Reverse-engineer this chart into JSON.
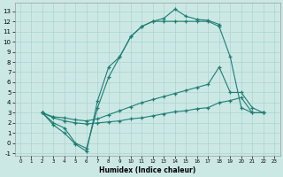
{
  "bg_color": "#cce8e5",
  "grid_color": "#aad4d0",
  "line_color": "#1e7d72",
  "xlabel": "Humidex (Indice chaleur)",
  "xlim": [
    -0.5,
    23.5
  ],
  "ylim": [
    -1.2,
    13.8
  ],
  "xticks": [
    0,
    1,
    2,
    3,
    4,
    5,
    6,
    7,
    8,
    9,
    10,
    11,
    12,
    13,
    14,
    15,
    16,
    17,
    18,
    19,
    20,
    21,
    22,
    23
  ],
  "yticks": [
    -1,
    0,
    1,
    2,
    3,
    4,
    5,
    6,
    7,
    8,
    9,
    10,
    11,
    12,
    13
  ],
  "curve1_x": [
    2,
    3,
    4,
    5,
    6,
    7,
    8,
    9,
    10,
    11,
    12,
    13,
    14,
    15,
    16,
    17,
    18,
    19,
    20,
    21,
    22
  ],
  "curve1_y": [
    3,
    1.8,
    1.0,
    -0.1,
    -0.8,
    4.2,
    7.5,
    8.5,
    10.5,
    11.5,
    12.0,
    12.0,
    12.0,
    12.0,
    12.0,
    12.0,
    11.5,
    8.5,
    3.5,
    3.0,
    3.0
  ],
  "curve2_x": [
    2,
    3,
    4,
    5,
    6,
    7,
    8,
    9,
    10,
    11,
    12,
    13,
    14,
    15,
    16,
    17,
    18
  ],
  "curve2_y": [
    3,
    2.0,
    1.5,
    0.0,
    -0.5,
    3.5,
    6.5,
    8.5,
    10.5,
    11.5,
    12.0,
    12.3,
    13.2,
    12.5,
    12.2,
    12.1,
    11.7
  ],
  "curve3_x": [
    2,
    3,
    4,
    5,
    6,
    7,
    8,
    9,
    10,
    11,
    12,
    13,
    14,
    15,
    16,
    17,
    18,
    19,
    20,
    21,
    22
  ],
  "curve3_y": [
    3,
    2.6,
    2.5,
    2.3,
    2.2,
    2.4,
    2.8,
    3.2,
    3.6,
    4.0,
    4.3,
    4.6,
    4.9,
    5.2,
    5.5,
    5.8,
    7.5,
    5.0,
    5.0,
    3.5,
    3.0
  ],
  "curve4_x": [
    2,
    3,
    4,
    5,
    6,
    7,
    8,
    9,
    10,
    11,
    12,
    13,
    14,
    15,
    16,
    17,
    18,
    19,
    20,
    21,
    22
  ],
  "curve4_y": [
    3,
    2.5,
    2.2,
    2.0,
    1.9,
    2.0,
    2.1,
    2.2,
    2.4,
    2.5,
    2.7,
    2.9,
    3.1,
    3.2,
    3.4,
    3.5,
    4.0,
    4.2,
    4.5,
    3.0,
    3.0
  ]
}
